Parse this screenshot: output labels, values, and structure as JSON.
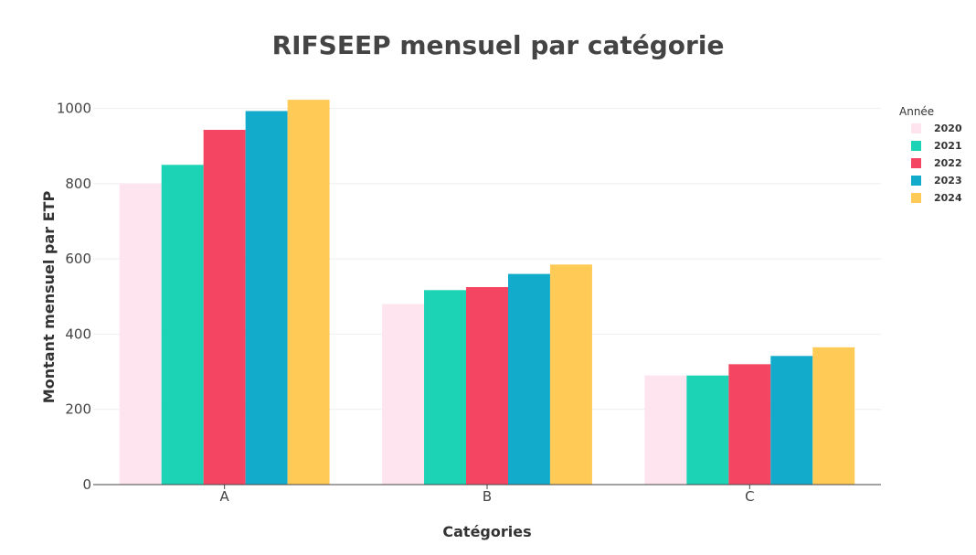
{
  "chart_data": {
    "type": "bar",
    "title": "RIFSEEP mensuel par catégorie",
    "xlabel": "Catégories",
    "ylabel": "Montant mensuel par ETP",
    "categories": [
      "A",
      "B",
      "C"
    ],
    "ylim": [
      0,
      1050
    ],
    "yticks": [
      0,
      200,
      400,
      600,
      800,
      1000
    ],
    "grid": true,
    "legend": {
      "title": "Année",
      "position": "top-right"
    },
    "series": [
      {
        "name": "2020",
        "color": "#fde4ee",
        "values": [
          800,
          480,
          290
        ]
      },
      {
        "name": "2021",
        "color": "#1dd3b5",
        "values": [
          850,
          517,
          290
        ]
      },
      {
        "name": "2022",
        "color": "#f44563",
        "values": [
          943,
          525,
          320
        ]
      },
      {
        "name": "2023",
        "color": "#12abcb",
        "values": [
          993,
          560,
          342
        ]
      },
      {
        "name": "2024",
        "color": "#ffcb56",
        "values": [
          1023,
          585,
          365
        ]
      }
    ]
  }
}
